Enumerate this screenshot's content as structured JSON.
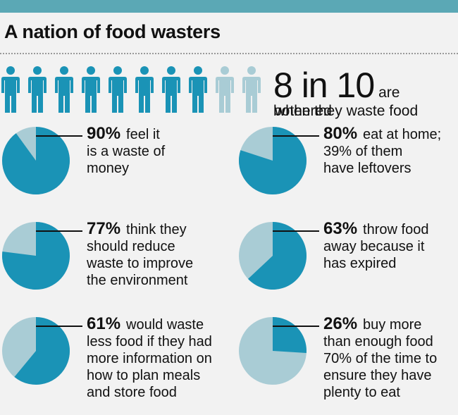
{
  "title": "A nation of food wasters",
  "headline": {
    "number": "8 in 10",
    "text_line1": "are bothered",
    "text_line2": "when they waste food"
  },
  "people_icons": {
    "filled": 8,
    "total": 10,
    "icon": "person-icon"
  },
  "colors": {
    "accent": "#1a93b6",
    "light": "#a9ccd5",
    "bar": "#5ba8b5",
    "background": "#f2f2f2"
  },
  "stats": [
    {
      "pct": "90%",
      "line1": "feel it",
      "lines": [
        "is a waste of",
        "money"
      ]
    },
    {
      "pct": "80%",
      "line1": "eat at home;",
      "lines": [
        "39% of them",
        "have leftovers"
      ]
    },
    {
      "pct": "77%",
      "line1": "think they",
      "lines": [
        "should reduce",
        "waste to improve",
        "the environment"
      ]
    },
    {
      "pct": "63%",
      "line1": "throw food",
      "lines": [
        "away because it",
        "has expired"
      ]
    },
    {
      "pct": "61%",
      "line1": "would waste",
      "lines": [
        "less food if they had",
        "more information on",
        "how to plan meals",
        "and store food"
      ]
    },
    {
      "pct": "26%",
      "line1": "buy more",
      "lines": [
        "than enough food",
        "70% of the time to",
        "ensure they have",
        "plenty to eat"
      ]
    }
  ],
  "chart_data": {
    "type": "pie",
    "values": [
      90,
      80,
      77,
      63,
      61,
      26
    ],
    "unit": "%",
    "series": [
      {
        "values": [
          90,
          80,
          77,
          63,
          61,
          26
        ]
      }
    ]
  }
}
